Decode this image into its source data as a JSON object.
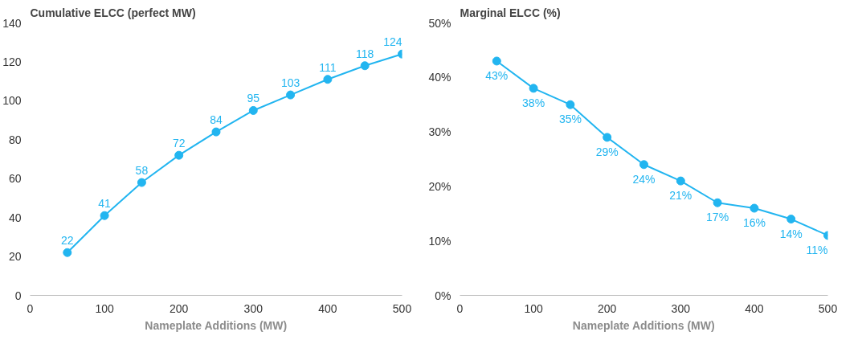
{
  "chart_data": [
    {
      "type": "line",
      "title": "Cumulative ELCC (perfect MW)",
      "xlabel": "Nameplate Additions (MW)",
      "x": [
        50,
        100,
        150,
        200,
        250,
        300,
        350,
        400,
        450,
        500
      ],
      "series": [
        {
          "color": "#22b5f0",
          "values": [
            22,
            41,
            58,
            72,
            84,
            95,
            103,
            111,
            118,
            124
          ]
        }
      ],
      "xlim": [
        0,
        500
      ],
      "xticks": [
        0,
        100,
        200,
        300,
        400,
        500
      ],
      "ylim": [
        0,
        140
      ],
      "yticks": [
        0,
        20,
        40,
        60,
        80,
        100,
        120,
        140
      ],
      "marker": "circle",
      "line_style": "solid",
      "data_labels": true,
      "grid": false
    },
    {
      "type": "line",
      "title": "Marginal ELCC (%)",
      "xlabel": "Nameplate Additions (MW)",
      "x": [
        50,
        100,
        150,
        200,
        250,
        300,
        350,
        400,
        450,
        500
      ],
      "series": [
        {
          "color": "#22b5f0",
          "values": [
            43,
            38,
            35,
            29,
            24,
            21,
            17,
            16,
            14,
            11
          ],
          "value_labels": [
            "43%",
            "38%",
            "35%",
            "29%",
            "24%",
            "21%",
            "17%",
            "16%",
            "14%",
            "11%"
          ]
        }
      ],
      "xlim": [
        0,
        500
      ],
      "xticks": [
        0,
        100,
        200,
        300,
        400,
        500
      ],
      "ylim": [
        0,
        50
      ],
      "yticks": [
        {
          "value": 0,
          "label": "0%"
        },
        {
          "value": 10,
          "label": "10%"
        },
        {
          "value": 20,
          "label": "20%"
        },
        {
          "value": 30,
          "label": "30%"
        },
        {
          "value": 40,
          "label": "40%"
        },
        {
          "value": 50,
          "label": "50%"
        }
      ],
      "marker": "circle",
      "line_style": "solid",
      "grid": false
    }
  ]
}
